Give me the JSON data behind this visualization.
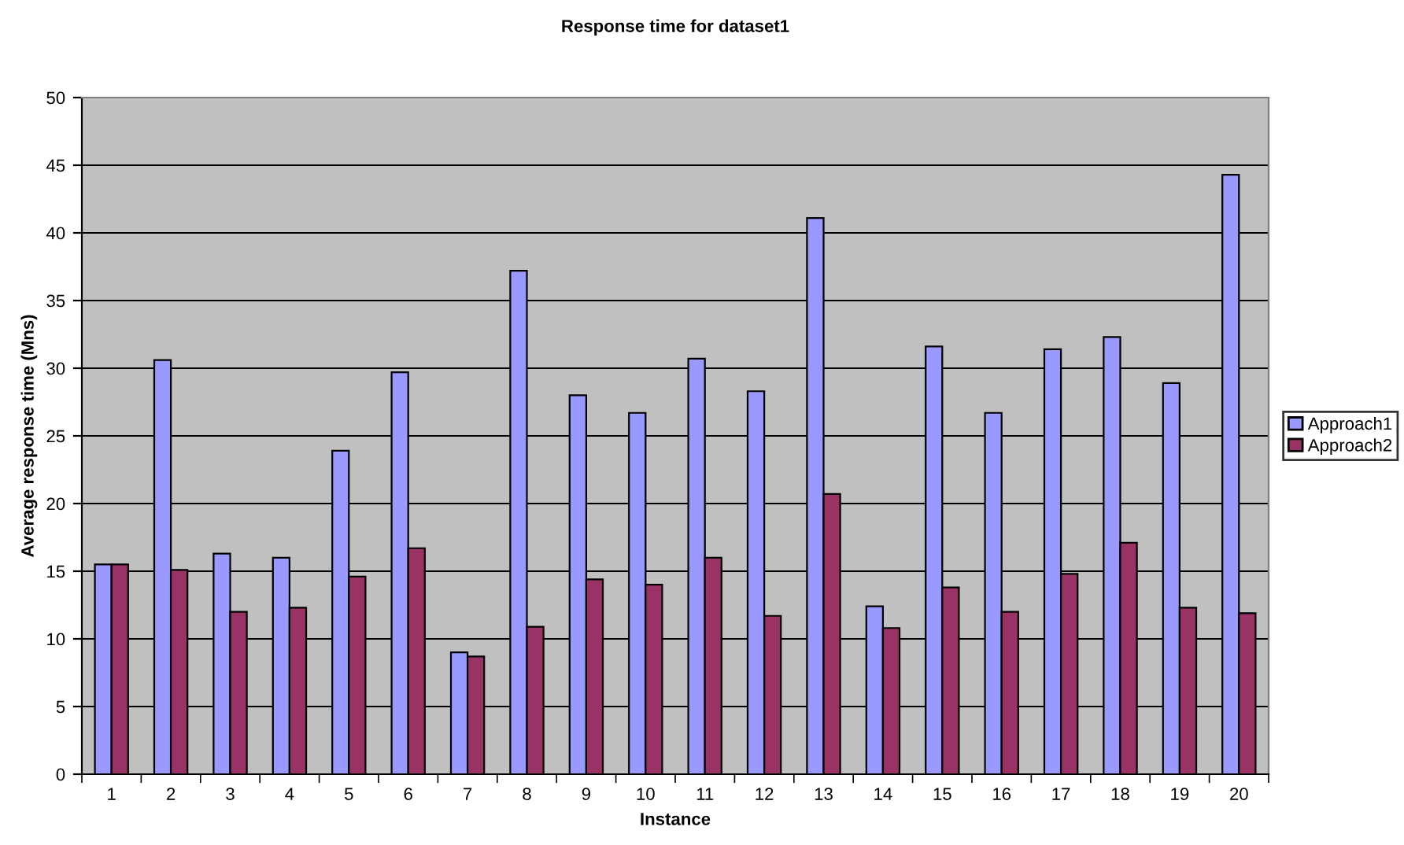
{
  "chart_data": {
    "type": "bar",
    "title": "Response time for dataset1",
    "xlabel": "Instance",
    "ylabel": "Average response time (Mns)",
    "categories": [
      "1",
      "2",
      "3",
      "4",
      "5",
      "6",
      "7",
      "8",
      "9",
      "10",
      "11",
      "12",
      "13",
      "14",
      "15",
      "16",
      "17",
      "18",
      "19",
      "20"
    ],
    "series": [
      {
        "name": "Approach1",
        "color": "#9999ff",
        "values": [
          15.5,
          30.6,
          16.3,
          16.0,
          23.9,
          29.7,
          9.0,
          37.2,
          28.0,
          26.7,
          30.7,
          28.3,
          41.1,
          12.4,
          31.6,
          26.7,
          31.4,
          32.3,
          28.9,
          44.3
        ]
      },
      {
        "name": "Approach2",
        "color": "#993366",
        "values": [
          15.5,
          15.1,
          12.0,
          12.3,
          14.6,
          16.7,
          8.7,
          10.9,
          14.4,
          14.0,
          16.0,
          11.7,
          20.7,
          10.8,
          13.8,
          12.0,
          14.8,
          17.1,
          12.3,
          11.9
        ]
      }
    ],
    "ylim": [
      0,
      50
    ],
    "yticks": [
      0,
      5,
      10,
      15,
      20,
      25,
      30,
      35,
      40,
      45,
      50
    ],
    "grid": "y",
    "legend": "right"
  }
}
